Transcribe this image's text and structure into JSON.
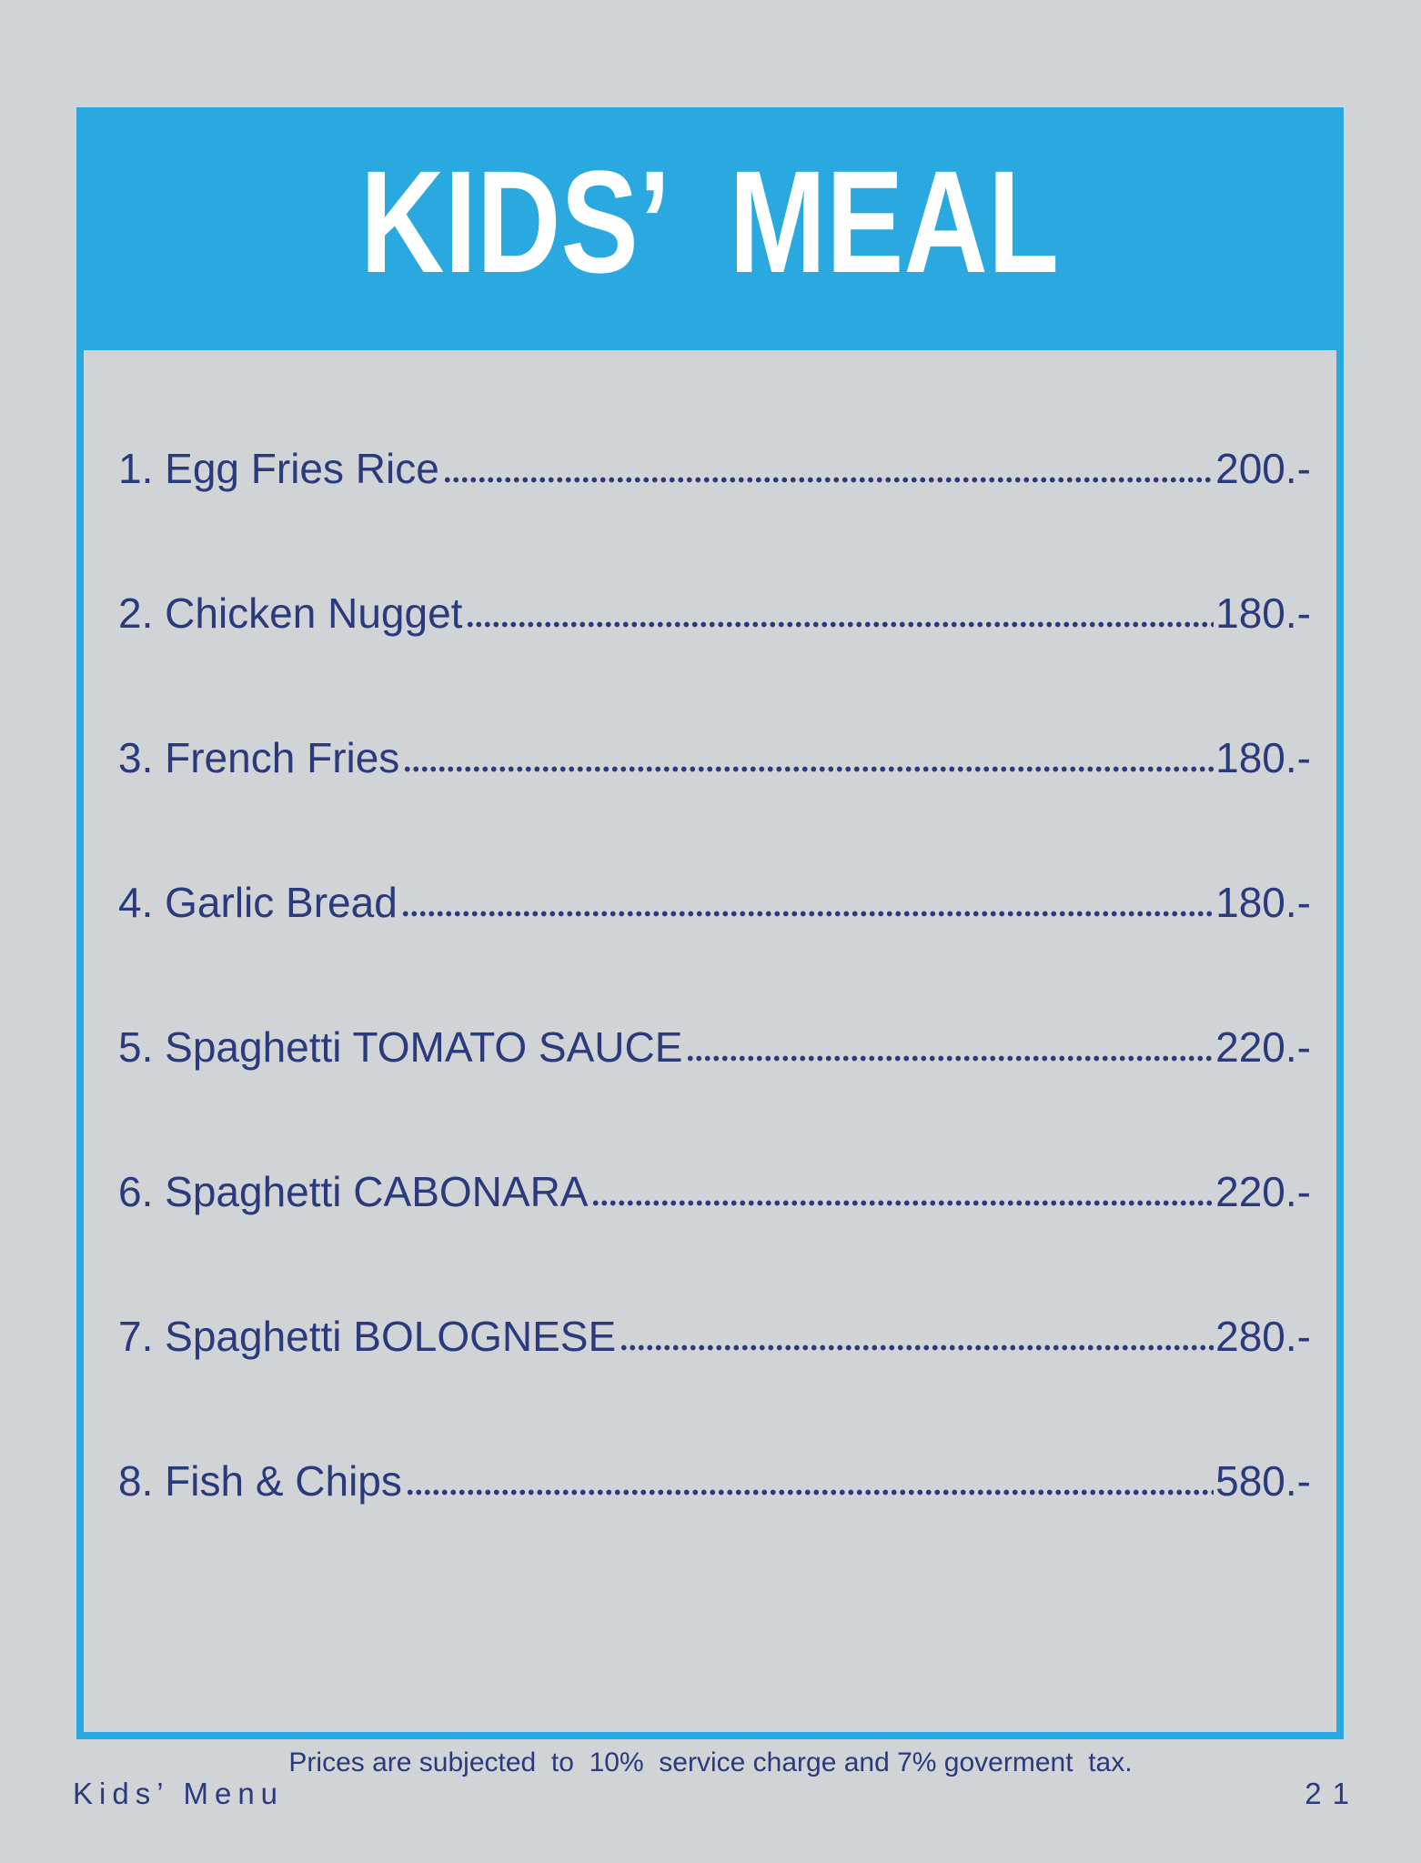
{
  "header": {
    "title": "KIDS’  MEAL"
  },
  "menu": {
    "items": [
      {
        "label": "1. Egg Fries Rice",
        "price": "200.-"
      },
      {
        "label": "2. Chicken Nugget",
        "price": "180.-"
      },
      {
        "label": "3. French Fries",
        "price": "180.-"
      },
      {
        "label": "4. Garlic Bread",
        "price": "180.-"
      },
      {
        "label": "5. Spaghetti TOMATO SAUCE",
        "price": "220.-"
      },
      {
        "label": "6. Spaghetti CABONARA",
        "price": "220.-"
      },
      {
        "label": "7. Spaghetti BOLOGNESE",
        "price": "280.-"
      },
      {
        "label": "8. Fish & Chips",
        "price": "580.-"
      }
    ]
  },
  "footer": {
    "note": "Prices are subjected  to  10%  service charge and 7% goverment  tax.",
    "menu_label": "Kids’ Menu",
    "page_number": "21"
  },
  "colors": {
    "accent_blue": "#29a9e0",
    "navy_text": "#2b3a7c",
    "page_background": "#d1d4d6",
    "title_text": "#ffffff"
  }
}
